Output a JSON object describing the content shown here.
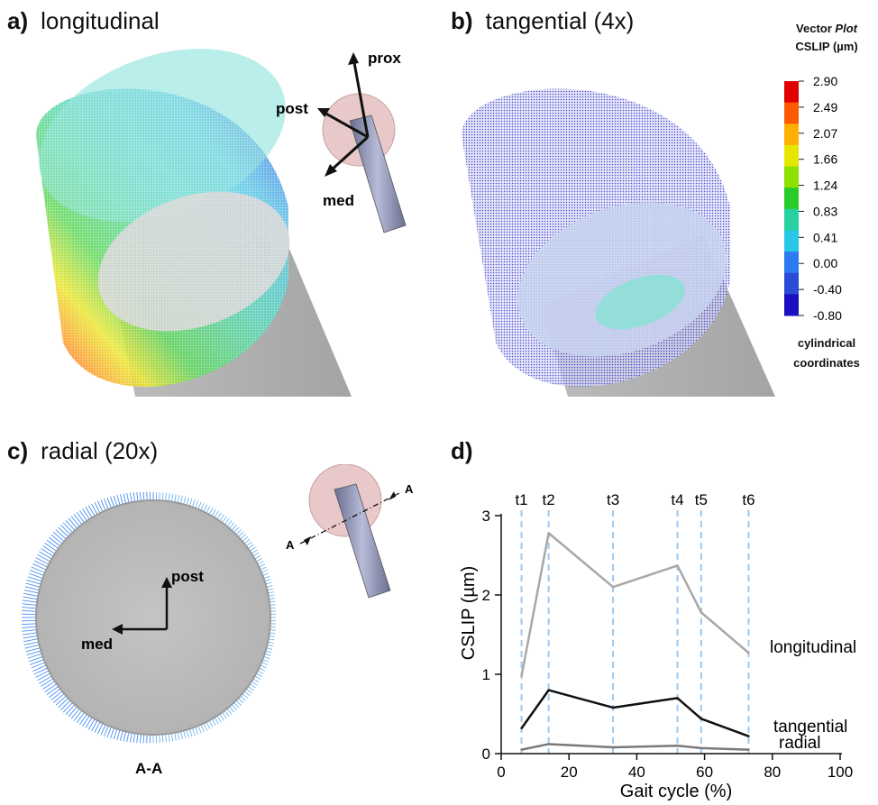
{
  "panels": {
    "a": {
      "letter": "a)",
      "title": "longitudinal"
    },
    "b": {
      "letter": "b)",
      "title": "tangential (4x)"
    },
    "c": {
      "letter": "c)",
      "title": "radial (20x)"
    },
    "d": {
      "letter": "d)"
    }
  },
  "axes_glyph_a": {
    "prox": "prox",
    "post": "post",
    "med": "med"
  },
  "axes_glyph_c": {
    "post": "post",
    "med": "med",
    "section": "A-A",
    "cut_left": "A",
    "cut_right": "A"
  },
  "legend": {
    "title_line1": "Vector",
    "title_line1_italic": "Plot",
    "title_line2": "CSLIP (µm)",
    "ticks": [
      "2.90",
      "2.49",
      "2.07",
      "1.66",
      "1.24",
      "0.83",
      "0.41",
      "0.00",
      "-0.40",
      "-0.80"
    ],
    "colors": [
      "#e00000",
      "#ff5a00",
      "#ffb000",
      "#e6e600",
      "#8ee000",
      "#28cc28",
      "#28d2a0",
      "#28c8e6",
      "#2a7cf0",
      "#2a4ad8",
      "#1a10c0"
    ],
    "footer_line1": "cylindrical",
    "footer_line2": "coordinates"
  },
  "chart_data": {
    "type": "line",
    "xlabel": "Gait cycle (%)",
    "ylabel": "CSLIP (µm)",
    "xlim": [
      0,
      100
    ],
    "ylim": [
      0,
      3
    ],
    "xticks": [
      0,
      20,
      40,
      60,
      80,
      100
    ],
    "yticks": [
      0,
      1,
      2,
      3
    ],
    "grid": false,
    "vlines": [
      {
        "label": "t1",
        "x": 6
      },
      {
        "label": "t2",
        "x": 14
      },
      {
        "label": "t3",
        "x": 33
      },
      {
        "label": "t4",
        "x": 52
      },
      {
        "label": "t5",
        "x": 59
      },
      {
        "label": "t6",
        "x": 73
      }
    ],
    "series": [
      {
        "name": "longitudinal",
        "color": "#a8a8a8",
        "x": [
          6,
          14,
          33,
          52,
          59,
          73
        ],
        "y": [
          0.98,
          2.78,
          2.1,
          2.37,
          1.78,
          1.27
        ]
      },
      {
        "name": "tangential",
        "color": "#111111",
        "x": [
          6,
          14,
          33,
          52,
          59,
          73
        ],
        "y": [
          0.32,
          0.8,
          0.58,
          0.7,
          0.44,
          0.22
        ]
      },
      {
        "name": "radial",
        "color": "#7a7a7a",
        "x": [
          6,
          14,
          33,
          52,
          59,
          73
        ],
        "y": [
          0.05,
          0.12,
          0.08,
          0.1,
          0.07,
          0.05
        ]
      }
    ]
  }
}
